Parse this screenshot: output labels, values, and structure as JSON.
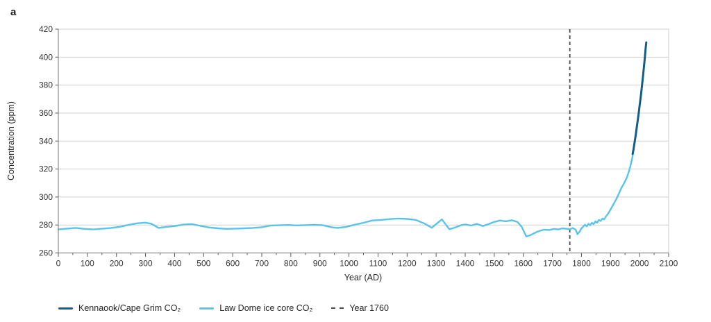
{
  "panel_label": "a",
  "colors": {
    "cape_grim": "#115e86",
    "law_dome": "#5ac3ea",
    "dashed": "#4a4a4a",
    "grid": "#cfcfcf",
    "axis": "#8c8c8c",
    "tick": "#595959",
    "label": "#333333"
  },
  "chart_data": {
    "type": "line",
    "title": "",
    "xlabel": "Year (AD)",
    "ylabel": "Concentration (ppm)",
    "xlim": [
      0,
      2100
    ],
    "ylim": [
      260,
      420
    ],
    "x_ticks": [
      0,
      100,
      200,
      300,
      400,
      500,
      600,
      700,
      800,
      900,
      1000,
      1100,
      1200,
      1300,
      1400,
      1500,
      1600,
      1700,
      1800,
      1900,
      2000,
      2100
    ],
    "x_minor_tick_step": 50,
    "y_ticks": [
      260,
      280,
      300,
      320,
      340,
      360,
      380,
      400,
      420
    ],
    "grid": "horizontal",
    "legend_position": "bottom",
    "vline": {
      "x": 1760,
      "label": "Year 1760",
      "style": "dashed"
    },
    "series": [
      {
        "name": "Kennaook/Cape Grim CO₂",
        "color_key": "cape_grim",
        "width": 3,
        "points": [
          [
            1976,
            330.8
          ],
          [
            1979,
            334.0
          ],
          [
            1982,
            338.0
          ],
          [
            1985,
            342.0
          ],
          [
            1988,
            346.2
          ],
          [
            1991,
            351.0
          ],
          [
            1994,
            355.2
          ],
          [
            1997,
            360.0
          ],
          [
            2000,
            365.0
          ],
          [
            2003,
            370.0
          ],
          [
            2006,
            375.4
          ],
          [
            2009,
            381.0
          ],
          [
            2012,
            386.8
          ],
          [
            2015,
            393.0
          ],
          [
            2018,
            399.6
          ],
          [
            2021,
            406.4
          ],
          [
            2023,
            410.5
          ]
        ]
      },
      {
        "name": "Law Dome ice core CO₂",
        "color_key": "law_dome",
        "width": 2.4,
        "points": [
          [
            0,
            276.8
          ],
          [
            30,
            277.4
          ],
          [
            60,
            277.9
          ],
          [
            90,
            277.2
          ],
          [
            120,
            276.8
          ],
          [
            150,
            277.3
          ],
          [
            180,
            277.8
          ],
          [
            210,
            278.6
          ],
          [
            240,
            280.0
          ],
          [
            270,
            281.2
          ],
          [
            300,
            281.7
          ],
          [
            320,
            280.9
          ],
          [
            345,
            277.9
          ],
          [
            370,
            278.6
          ],
          [
            400,
            279.2
          ],
          [
            430,
            280.3
          ],
          [
            460,
            280.6
          ],
          [
            490,
            279.3
          ],
          [
            520,
            278.2
          ],
          [
            550,
            277.6
          ],
          [
            580,
            277.2
          ],
          [
            610,
            277.4
          ],
          [
            640,
            277.6
          ],
          [
            670,
            277.9
          ],
          [
            700,
            278.4
          ],
          [
            730,
            279.6
          ],
          [
            760,
            279.8
          ],
          [
            790,
            280.0
          ],
          [
            820,
            279.7
          ],
          [
            850,
            279.9
          ],
          [
            880,
            280.1
          ],
          [
            910,
            279.8
          ],
          [
            940,
            278.4
          ],
          [
            960,
            277.9
          ],
          [
            990,
            278.6
          ],
          [
            1020,
            280.2
          ],
          [
            1050,
            281.6
          ],
          [
            1080,
            283.2
          ],
          [
            1110,
            283.6
          ],
          [
            1140,
            284.2
          ],
          [
            1170,
            284.6
          ],
          [
            1200,
            284.3
          ],
          [
            1230,
            283.6
          ],
          [
            1260,
            281.0
          ],
          [
            1285,
            278.0
          ],
          [
            1305,
            281.5
          ],
          [
            1320,
            284.0
          ],
          [
            1345,
            277.0
          ],
          [
            1360,
            277.8
          ],
          [
            1385,
            279.8
          ],
          [
            1400,
            280.4
          ],
          [
            1420,
            279.6
          ],
          [
            1440,
            280.8
          ],
          [
            1460,
            279.2
          ],
          [
            1480,
            280.6
          ],
          [
            1500,
            282.2
          ],
          [
            1520,
            283.2
          ],
          [
            1540,
            282.6
          ],
          [
            1560,
            283.4
          ],
          [
            1580,
            282.2
          ],
          [
            1595,
            278.5
          ],
          [
            1610,
            271.8
          ],
          [
            1625,
            272.8
          ],
          [
            1650,
            275.4
          ],
          [
            1670,
            276.6
          ],
          [
            1690,
            276.4
          ],
          [
            1705,
            277.2
          ],
          [
            1720,
            276.8
          ],
          [
            1735,
            277.6
          ],
          [
            1750,
            277.2
          ],
          [
            1760,
            277.0
          ],
          [
            1770,
            277.8
          ],
          [
            1780,
            276.6
          ],
          [
            1786,
            273.4
          ],
          [
            1793,
            275.0
          ],
          [
            1800,
            277.6
          ],
          [
            1806,
            278.8
          ],
          [
            1812,
            280.2
          ],
          [
            1818,
            279.0
          ],
          [
            1824,
            280.8
          ],
          [
            1830,
            279.8
          ],
          [
            1836,
            281.6
          ],
          [
            1842,
            280.6
          ],
          [
            1848,
            282.6
          ],
          [
            1854,
            281.6
          ],
          [
            1860,
            283.6
          ],
          [
            1866,
            282.8
          ],
          [
            1872,
            284.6
          ],
          [
            1878,
            284.0
          ],
          [
            1884,
            286.0
          ],
          [
            1890,
            287.6
          ],
          [
            1896,
            289.6
          ],
          [
            1902,
            291.8
          ],
          [
            1908,
            294.0
          ],
          [
            1914,
            296.2
          ],
          [
            1920,
            298.6
          ],
          [
            1926,
            301.2
          ],
          [
            1932,
            304.0
          ],
          [
            1938,
            306.8
          ],
          [
            1944,
            308.8
          ],
          [
            1950,
            311.2
          ],
          [
            1956,
            313.8
          ],
          [
            1960,
            316.2
          ],
          [
            1964,
            318.8
          ],
          [
            1968,
            321.8
          ],
          [
            1972,
            325.2
          ],
          [
            1975,
            328.2
          ],
          [
            1978,
            331.5
          ]
        ]
      }
    ],
    "legend": [
      {
        "label": "Kennaook/Cape Grim CO₂",
        "swatch": "line",
        "color_key": "cape_grim"
      },
      {
        "label": "Law Dome ice core CO₂",
        "swatch": "line",
        "color_key": "law_dome"
      },
      {
        "label": "Year 1760",
        "swatch": "dashed",
        "color_key": "dashed"
      }
    ]
  }
}
